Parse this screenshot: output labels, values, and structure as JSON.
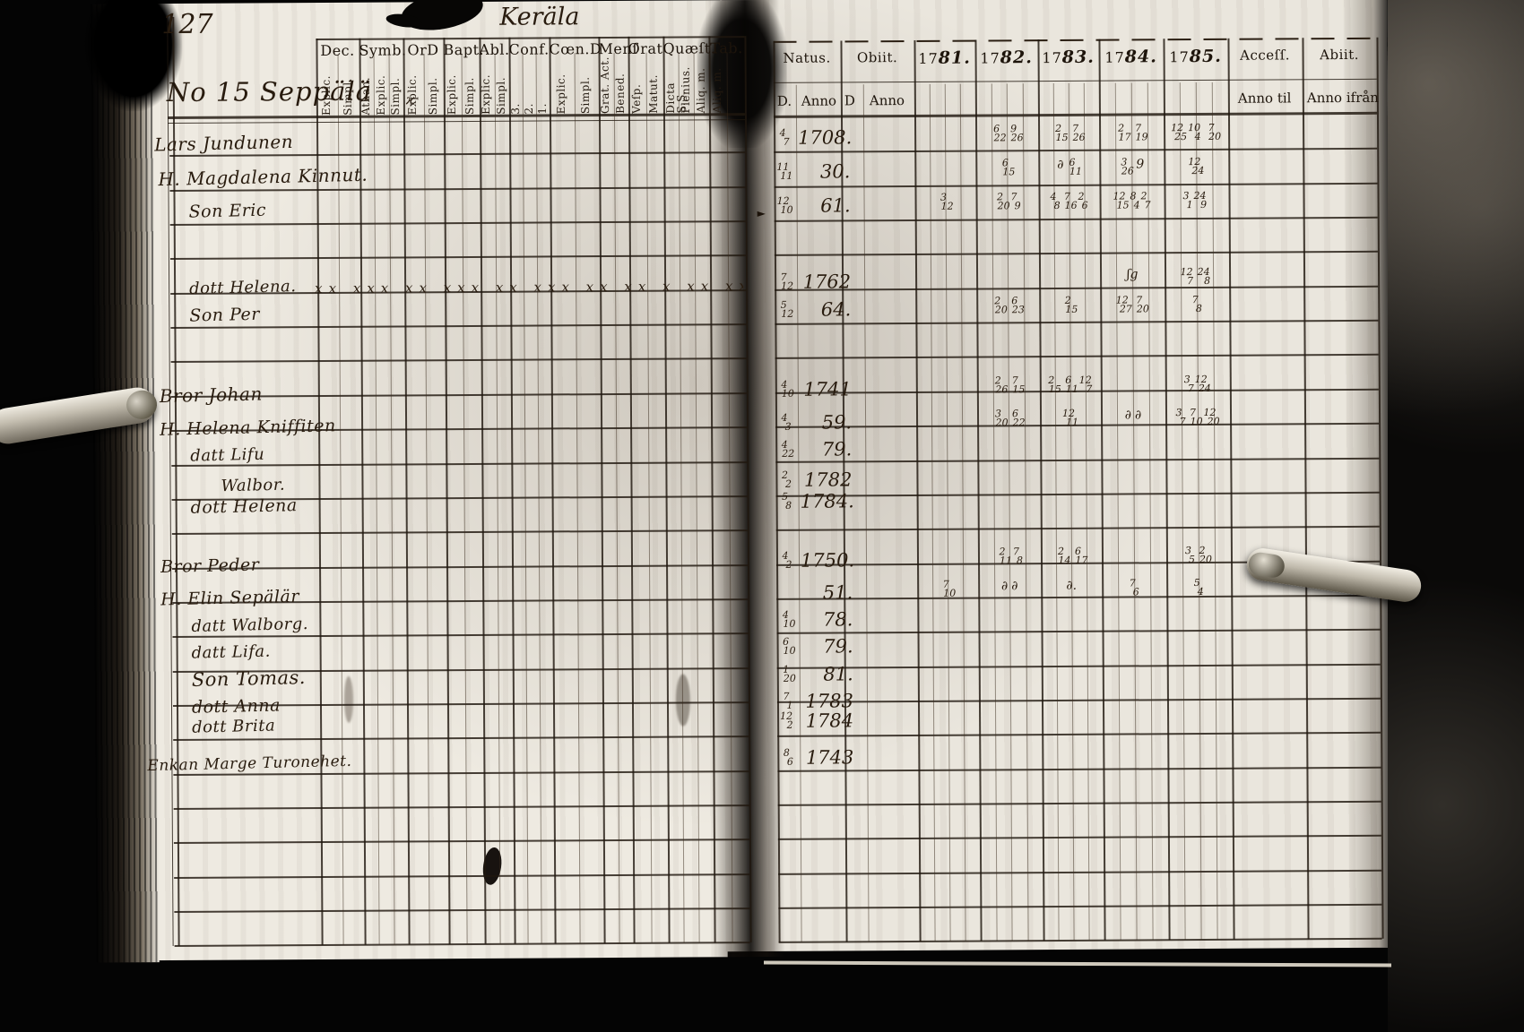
{
  "page": {
    "number": "127",
    "place_title": "Keräla",
    "household_title": "No 15 Seppälä"
  },
  "left_table": {
    "groups": [
      {
        "label": "Dec.",
        "subs": [
          "Explic.",
          "Simpl."
        ]
      },
      {
        "label": "Symb.",
        "subs": [
          "Athan.",
          "Explic.",
          "Simpl."
        ]
      },
      {
        "label": "OrD",
        "subs": [
          "Explic.",
          "Simpl."
        ]
      },
      {
        "label": "Bapt.",
        "subs": [
          "Explic.",
          "Simpl."
        ]
      },
      {
        "label": "Abl.",
        "subs": [
          "Explic.",
          "Simpl."
        ]
      },
      {
        "label": "Conf.",
        "subs": [
          "3.",
          "2.",
          "1."
        ]
      },
      {
        "label": "Cœn.D",
        "subs": [
          "Explic.",
          "Simpl."
        ]
      },
      {
        "label": "Menſ",
        "subs": [
          "Grat. Act.",
          "Bened."
        ]
      },
      {
        "label": "Orat",
        "subs": [
          "Veſp.",
          "Matut."
        ]
      },
      {
        "label": "Quæſt.",
        "subs": [
          "Dicta S.S.",
          "Plenius.",
          "Aliq. m."
        ]
      },
      {
        "label": "Tab.",
        "subs": [
          "Aliq. m.",
          ""
        ]
      }
    ]
  },
  "right_table": {
    "natus": {
      "label": "Natus.",
      "sub_d": "D.",
      "sub_anno": "Anno"
    },
    "obiit": {
      "label": "Obiit.",
      "sub_d": "D",
      "sub_anno": "Anno"
    },
    "years": [
      "1781.",
      "1782.",
      "1783.",
      "1784.",
      "1785."
    ],
    "accessit": {
      "label": "Acceſſ.",
      "sub": "Anno til"
    },
    "abiit": {
      "label": "Abiit.",
      "sub": "Anno ifrån"
    }
  },
  "records": [
    {
      "name": "Lars Jundunen",
      "natus_d": "4/7",
      "natus_anno": "1708.",
      "marks": {
        "y82": "6/22 9/26",
        "y83": "2/15 7/26",
        "y84": "2/17 7/19",
        "y85": "12/25 10/4 7/20"
      }
    },
    {
      "name": "H. Magdalena Kinnut.",
      "natus_d": "11/11",
      "natus_anno": "30.",
      "marks": {
        "y82": "6/15",
        "y83": "∂ 6/11",
        "y84": "3/26 9",
        "y85": "12/24"
      }
    },
    {
      "name": "Son Eric",
      "natus_d": "12/10",
      "natus_anno": "61.",
      "marks": {
        "y81": "3/12",
        "y82": "2/20 7/9",
        "y83": "4/8 7/16 2/6",
        "y84": "12/15 8/4 2/7",
        "y85": "3/1 24/9"
      }
    },
    {
      "name": "dott Helena.",
      "natus_d": "7/12",
      "natus_anno": "1762",
      "xmarks": "xx xxx xx xxx xx xxx xx xx x xx xxx x",
      "marks": {
        "y84": "ʃg",
        "y85": "12/7 24/8"
      }
    },
    {
      "name": "Son Per",
      "natus_d": "5/12",
      "natus_anno": "64.",
      "marks": {
        "y82": "2/20 6/23",
        "y83": "2/15",
        "y84": "12/27 7/20",
        "y85": "7/8"
      }
    },
    {
      "name": "Bror Johan",
      "natus_d": "4/10",
      "natus_anno": "1741",
      "marks": {
        "y82": "2/26 7/15",
        "y83": "2/15 6/11 12/7",
        "y85": "3/7 12/24"
      }
    },
    {
      "name": "H. Helena Kniffiten",
      "natus_d": "4/3",
      "natus_anno": "59.",
      "marks": {
        "y82": "3/20 6/22",
        "y83": "12/11",
        "y84": "∂ ∂",
        "y85": "3/7 7/10 12/20"
      }
    },
    {
      "name": "datt Lifu",
      "natus_d": "4/22",
      "natus_anno": "79.",
      "marks": {}
    },
    {
      "name": "Walbor.",
      "natus_d": "2/2",
      "natus_anno": "1782",
      "marks": {}
    },
    {
      "name": "dott Helena",
      "natus_d": "5/8",
      "natus_anno": "1784.",
      "marks": {}
    },
    {
      "name": "Bror Peder",
      "natus_d": "4/2",
      "natus_anno": "1750.",
      "marks": {
        "y82": "2/11 7/8",
        "y83": "2/14 6/17",
        "y85": "3/5 2/20"
      }
    },
    {
      "name": "H. Elin Sepälär",
      "natus_d": "",
      "natus_anno": "51.",
      "marks": {
        "y81": "7/10",
        "y82": "∂ ∂",
        "y83": "∂.",
        "y84": "7/6",
        "y85": "5/4"
      }
    },
    {
      "name": "datt Walborg.",
      "natus_d": "4/10",
      "natus_anno": "78.",
      "marks": {}
    },
    {
      "name": "datt Lifa.",
      "natus_d": "6/10",
      "natus_anno": "79.",
      "marks": {}
    },
    {
      "name": "Son Tomas.",
      "natus_d": "1/20",
      "natus_anno": "81.",
      "marks": {}
    },
    {
      "name": "dott Anna",
      "natus_d": "7/1",
      "natus_anno": "1783",
      "marks": {}
    },
    {
      "name": "dott Brita",
      "natus_d": "12/2",
      "natus_anno": "1784",
      "marks": {}
    },
    {
      "name": "Enkan Marge Turonehet.",
      "natus_d": "8/6",
      "natus_anno": "1743",
      "marks": {}
    }
  ]
}
